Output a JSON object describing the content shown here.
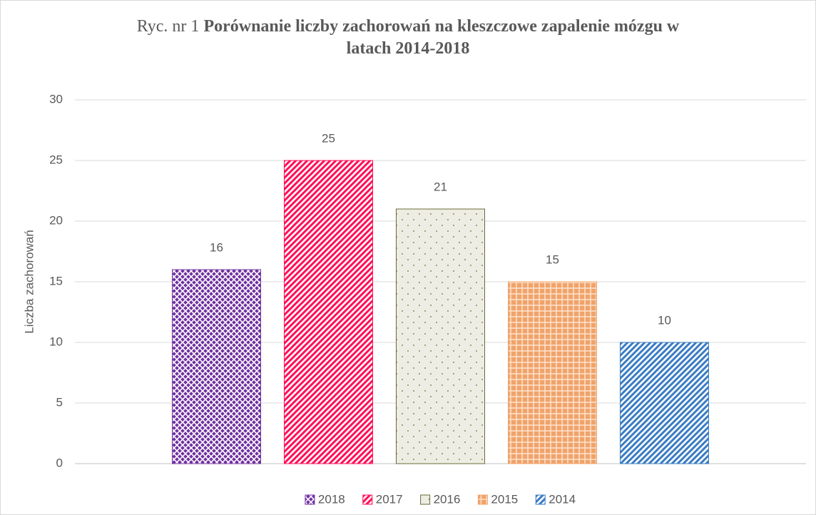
{
  "chart_data": {
    "type": "bar",
    "title_lead": "Ryc. nr 1",
    "title": "Porównanie liczby zachorowań na kleszczowe zapalenie mózgu w latach 2014-2018",
    "y_label": "Liczba zachorowań",
    "categories": [
      null
    ],
    "series": [
      {
        "name": "2018",
        "color": "#7030a0",
        "pattern": "lattice",
        "values": [
          16
        ]
      },
      {
        "name": "2017",
        "color": "#ff0f5a",
        "pattern": "diagonal",
        "values": [
          25
        ]
      },
      {
        "name": "2016",
        "color": "#6b6b3a",
        "pattern": "dots",
        "values": [
          21
        ]
      },
      {
        "name": "2015",
        "color": "#f0a36a",
        "pattern": "grid",
        "values": [
          15
        ]
      },
      {
        "name": "2014",
        "color": "#3a7cc2",
        "pattern": "diagonal",
        "values": [
          10
        ]
      }
    ],
    "ylim": [
      0,
      30
    ],
    "yticks": [
      0,
      5,
      10,
      15,
      20,
      25,
      30
    ],
    "grid": true,
    "legend": "bottom"
  }
}
